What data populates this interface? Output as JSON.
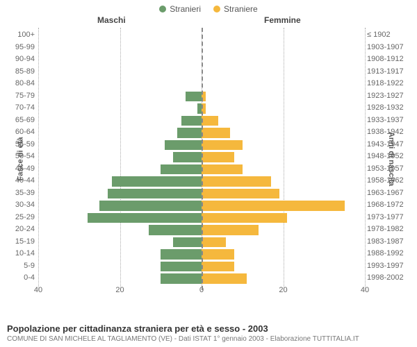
{
  "legend": {
    "male_label": "Stranieri",
    "female_label": "Straniere",
    "male_color": "#6b9c6b",
    "female_color": "#f5b83d"
  },
  "top_titles": {
    "male": "Maschi",
    "female": "Femmine"
  },
  "y_axis_left": "Fasce di età",
  "y_axis_right": "Anni di nascita",
  "footer": {
    "title": "Popolazione per cittadinanza straniera per età e sesso - 2003",
    "subtitle": "COMUNE DI SAN MICHELE AL TAGLIAMENTO (VE) - Dati ISTAT 1° gennaio 2003 - Elaborazione TUTTITALIA.IT"
  },
  "x_axis": {
    "max": 40,
    "ticks_left": [
      40,
      20,
      0
    ],
    "ticks_right": [
      0,
      20,
      40
    ]
  },
  "chart": {
    "row_height": 17.5,
    "rows": [
      {
        "age": "0-4",
        "year": "1998-2002",
        "m": 10,
        "f": 11
      },
      {
        "age": "5-9",
        "year": "1993-1997",
        "m": 10,
        "f": 8
      },
      {
        "age": "10-14",
        "year": "1988-1992",
        "m": 10,
        "f": 8
      },
      {
        "age": "15-19",
        "year": "1983-1987",
        "m": 7,
        "f": 6
      },
      {
        "age": "20-24",
        "year": "1978-1982",
        "m": 13,
        "f": 14
      },
      {
        "age": "25-29",
        "year": "1973-1977",
        "m": 28,
        "f": 21
      },
      {
        "age": "30-34",
        "year": "1968-1972",
        "m": 25,
        "f": 35
      },
      {
        "age": "35-39",
        "year": "1963-1967",
        "m": 23,
        "f": 19
      },
      {
        "age": "40-44",
        "year": "1958-1962",
        "m": 22,
        "f": 17
      },
      {
        "age": "45-49",
        "year": "1953-1957",
        "m": 10,
        "f": 10
      },
      {
        "age": "50-54",
        "year": "1948-1952",
        "m": 7,
        "f": 8
      },
      {
        "age": "55-59",
        "year": "1943-1947",
        "m": 9,
        "f": 10
      },
      {
        "age": "60-64",
        "year": "1938-1942",
        "m": 6,
        "f": 7
      },
      {
        "age": "65-69",
        "year": "1933-1937",
        "m": 5,
        "f": 4
      },
      {
        "age": "70-74",
        "year": "1928-1932",
        "m": 1,
        "f": 1
      },
      {
        "age": "75-79",
        "year": "1923-1927",
        "m": 4,
        "f": 1
      },
      {
        "age": "80-84",
        "year": "1918-1922",
        "m": 0,
        "f": 0
      },
      {
        "age": "85-89",
        "year": "1913-1917",
        "m": 0,
        "f": 0
      },
      {
        "age": "90-94",
        "year": "1908-1912",
        "m": 0,
        "f": 0
      },
      {
        "age": "95-99",
        "year": "1903-1907",
        "m": 0,
        "f": 0
      },
      {
        "age": "100+",
        "year": "≤ 1902",
        "m": 0,
        "f": 0
      }
    ]
  }
}
